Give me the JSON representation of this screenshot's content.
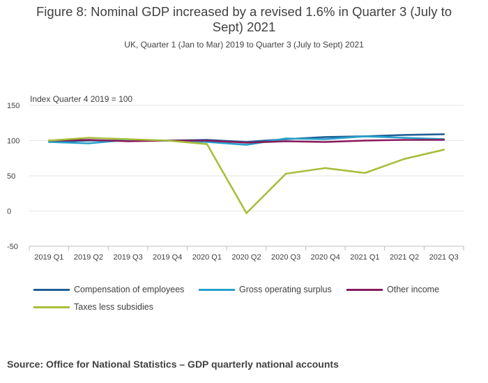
{
  "title": "Figure 8: Nominal GDP increased by a revised 1.6% in Quarter 3 (July to Sept) 2021",
  "subtitle": "UK, Quarter 1 (Jan to Mar) 2019 to Quarter 3 (July to Sept) 2021",
  "source": "Source: Office for National Statistics – GDP quarterly national accounts",
  "chart_data": {
    "type": "line",
    "ylabel": "Index Quarter 4 2019 = 100",
    "ylim": [
      -50,
      150
    ],
    "yticks": [
      150,
      100,
      50,
      0,
      -50
    ],
    "grid": true,
    "legend_position": "bottom",
    "categories": [
      "2019 Q1",
      "2019 Q2",
      "2019 Q3",
      "2019 Q4",
      "2020 Q1",
      "2020 Q2",
      "2020 Q3",
      "2020 Q4",
      "2021 Q1",
      "2021 Q2",
      "2021 Q3"
    ],
    "series": [
      {
        "name": "Compensation of employees",
        "color": "#206095",
        "values": [
          98,
          100,
          100,
          100,
          101,
          98,
          102,
          105,
          106,
          108,
          109
        ]
      },
      {
        "name": "Gross operating surplus",
        "color": "#27a0cc",
        "values": [
          98,
          96,
          101,
          100,
          98,
          94,
          103,
          102,
          106,
          104,
          102
        ]
      },
      {
        "name": "Other income",
        "color": "#871a5b",
        "values": [
          100,
          101,
          99,
          100,
          100,
          97,
          99,
          98,
          100,
          101,
          101
        ]
      },
      {
        "name": "Taxes less subsidies",
        "color": "#a8bd3a",
        "values": [
          100,
          104,
          102,
          100,
          95,
          -3,
          53,
          61,
          54,
          74,
          87
        ]
      }
    ]
  }
}
